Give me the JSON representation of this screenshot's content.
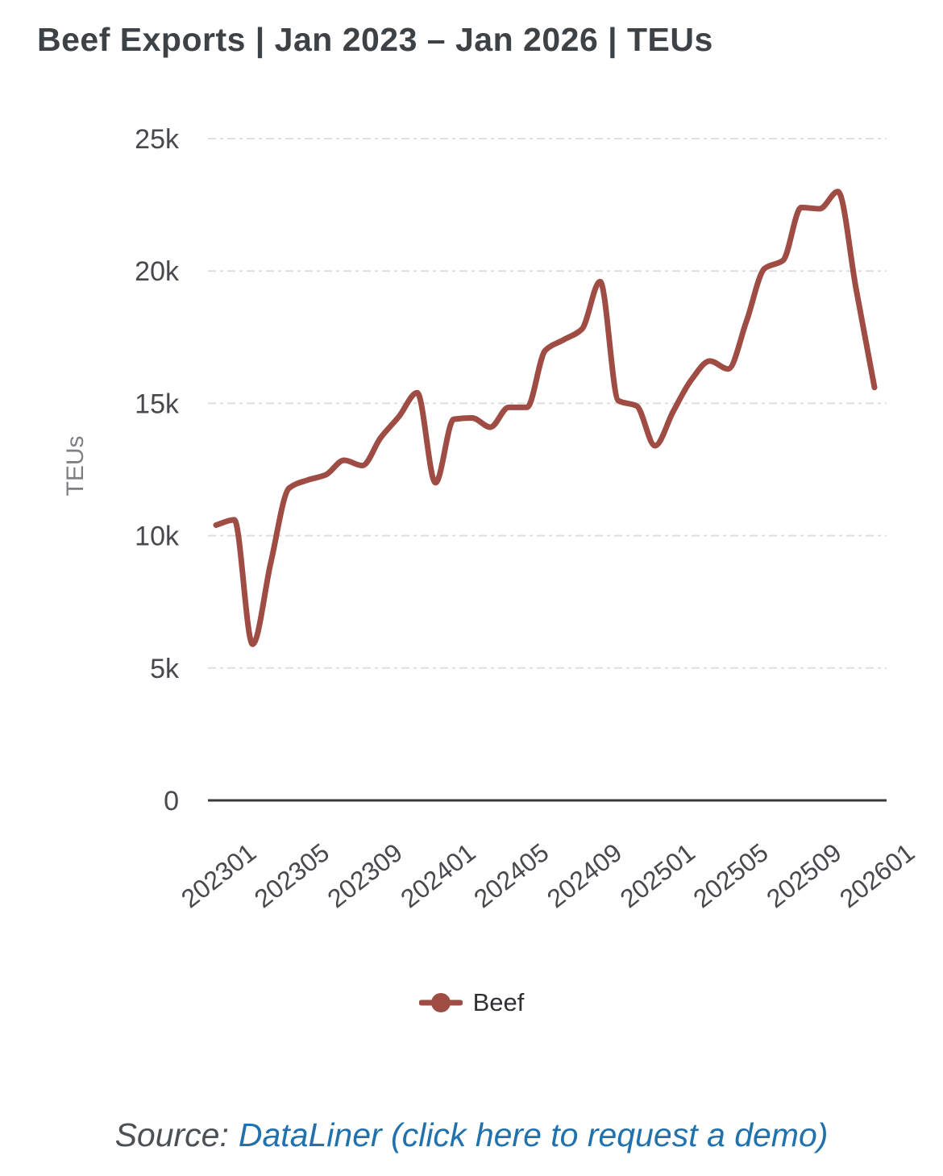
{
  "chart_data": {
    "type": "line",
    "title": "Beef Exports | Jan 2023 – Jan 2026 | TEUs",
    "xlabel": "",
    "ylabel": "TEUs",
    "ylim": [
      0,
      25000
    ],
    "grid": "horizontal-dashed",
    "legend_position": "bottom",
    "x_tick_rotation": -38,
    "yticks": [
      {
        "value": 0,
        "label": "0"
      },
      {
        "value": 5000,
        "label": "5k"
      },
      {
        "value": 10000,
        "label": "10k"
      },
      {
        "value": 15000,
        "label": "15k"
      },
      {
        "value": 20000,
        "label": "20k"
      },
      {
        "value": 25000,
        "label": "25k"
      }
    ],
    "x": [
      "202301",
      "202302",
      "202303",
      "202304",
      "202305",
      "202306",
      "202307",
      "202308",
      "202309",
      "202310",
      "202311",
      "202312",
      "202401",
      "202402",
      "202403",
      "202404",
      "202405",
      "202406",
      "202407",
      "202408",
      "202409",
      "202410",
      "202411",
      "202412",
      "202501",
      "202502",
      "202503",
      "202504",
      "202505",
      "202506",
      "202507",
      "202508",
      "202509",
      "202510",
      "202511",
      "202512",
      "202601"
    ],
    "xticks": [
      "202301",
      "202305",
      "202309",
      "202401",
      "202405",
      "202409",
      "202501",
      "202505",
      "202509",
      "202601"
    ],
    "series": [
      {
        "name": "Beef",
        "color": "#9e4c44",
        "values": [
          10400,
          10600,
          5900,
          9000,
          11800,
          12100,
          12300,
          12850,
          12650,
          13700,
          14500,
          15400,
          12000,
          14400,
          14450,
          14100,
          14850,
          14850,
          17000,
          17400,
          17800,
          19600,
          15100,
          14900,
          13400,
          14700,
          15900,
          16600,
          16300,
          18100,
          20100,
          20400,
          22400,
          22350,
          23000,
          19300,
          15600
        ]
      }
    ]
  },
  "source": {
    "prefix": "Source:",
    "link_text": "DataLiner (click here to request a demo)"
  },
  "colors": {
    "line": "#9e4c44",
    "title": "#3d4247",
    "tick": "#47494d",
    "grid": "#dedede",
    "axis": "#3a3a3a",
    "ylabel": "#7d7f82",
    "link": "#2172ac",
    "source_text": "#4b5055"
  }
}
